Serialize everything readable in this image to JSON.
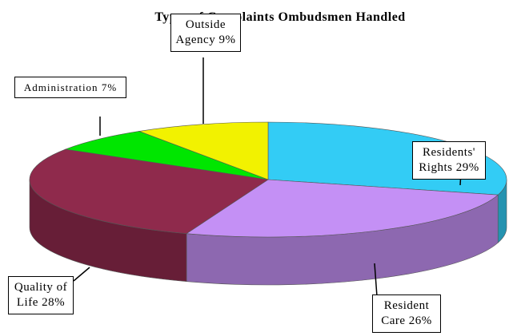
{
  "chart_data": {
    "type": "pie3d",
    "title": "Types of Complaints Ombudsmen Handled",
    "categories": [
      "Residents' Rights",
      "Resident Care",
      "Quality of Life",
      "Administration",
      "Outside Agency"
    ],
    "values": [
      29,
      26,
      28,
      7,
      9
    ],
    "value_labels": [
      "29%",
      "26%",
      "28%",
      "7%",
      "9%"
    ],
    "colors": [
      "#33ccf5",
      "#c490f5",
      "#8f2a4c",
      "#00e600",
      "#f2f200"
    ]
  }
}
